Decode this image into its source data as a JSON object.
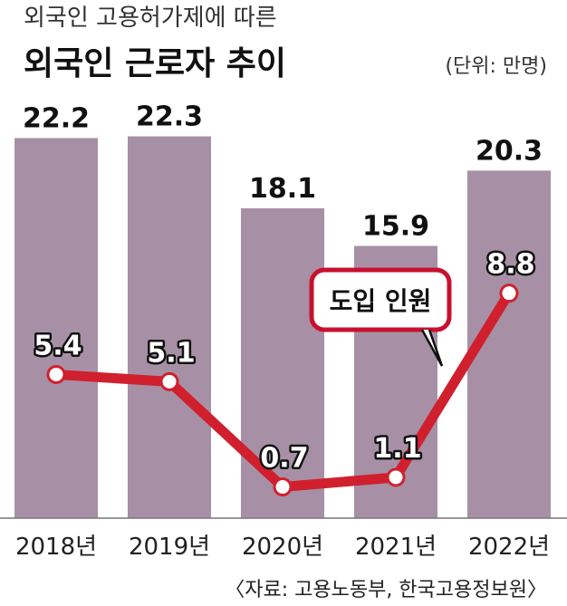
{
  "chart_data": {
    "type": "bar",
    "subtitle": "외국인 고용허가제에 따른",
    "title": "외국인 근로자 추이",
    "unit": "(단위: 만명)",
    "categories": [
      "2018년",
      "2019년",
      "2020년",
      "2021년",
      "2022년"
    ],
    "series": [
      {
        "name": "",
        "type": "bar",
        "values": [
          22.2,
          22.3,
          18.1,
          15.9,
          20.3
        ]
      },
      {
        "name": "도입 인원",
        "type": "line",
        "values": [
          5.4,
          5.1,
          0.7,
          1.1,
          8.8
        ]
      }
    ],
    "callout": "도입 인원",
    "source": "〈자료: 고용노동부, 한국고용정보원〉",
    "ylim": [
      0,
      25
    ],
    "grid": false,
    "colors": {
      "bar": "#a790a6",
      "line": "#d0202e",
      "marker_fill": "#ffffff",
      "text": "#111111"
    }
  }
}
